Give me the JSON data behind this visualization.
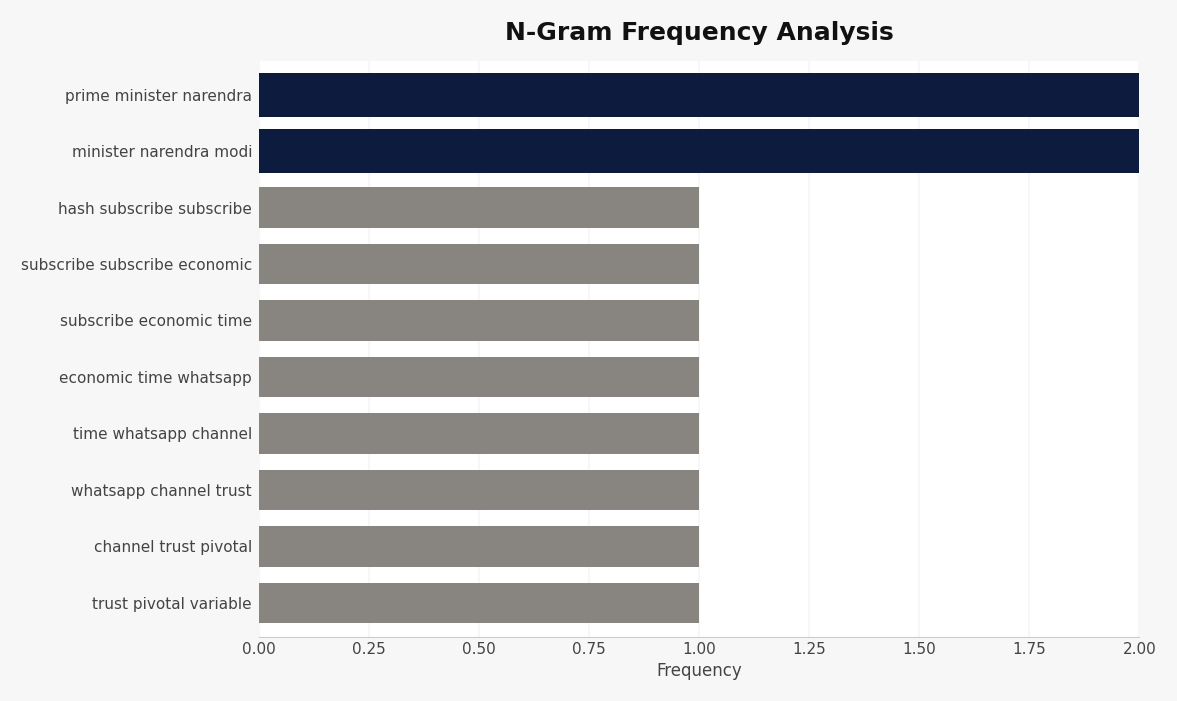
{
  "title": "N-Gram Frequency Analysis",
  "categories": [
    "trust pivotal variable",
    "channel trust pivotal",
    "whatsapp channel trust",
    "time whatsapp channel",
    "economic time whatsapp",
    "subscribe economic time",
    "subscribe subscribe economic",
    "hash subscribe subscribe",
    "minister narendra modi",
    "prime minister narendra"
  ],
  "values": [
    1,
    1,
    1,
    1,
    1,
    1,
    1,
    1,
    2,
    2
  ],
  "bar_colors": [
    "#888580",
    "#888580",
    "#888580",
    "#888580",
    "#888580",
    "#888580",
    "#888580",
    "#888580",
    "#0d1b3e",
    "#0d1b3e"
  ],
  "bar_heights": [
    0.72,
    0.72,
    0.72,
    0.72,
    0.72,
    0.72,
    0.72,
    0.72,
    0.78,
    0.78
  ],
  "xlabel": "Frequency",
  "xlim": [
    0,
    2.0
  ],
  "xticks": [
    0.0,
    0.25,
    0.5,
    0.75,
    1.0,
    1.25,
    1.5,
    1.75,
    2.0
  ],
  "background_color": "#f7f7f7",
  "plot_bg_color": "#ffffff",
  "title_fontsize": 18,
  "label_fontsize": 11,
  "tick_fontsize": 11
}
